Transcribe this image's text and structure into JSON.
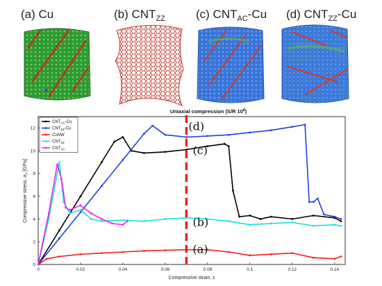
{
  "panels": [
    {
      "prefix": "(a) Cu",
      "sub": "",
      "suffix": ""
    },
    {
      "prefix": "(b) CNT",
      "sub": "ZZ",
      "suffix": ""
    },
    {
      "prefix": "(c) CNT",
      "sub": "AC",
      "suffix": "-Cu"
    },
    {
      "prefix": "(d) CNT",
      "sub": "ZZ",
      "suffix": "-Cu"
    }
  ],
  "colors": {
    "copper_green": "#3aa03a",
    "copper_red": "#cc2a2a",
    "cnt_blue": "#3a6fd8",
    "cnt_red_sheet": "#c9483e",
    "dashed_marker": "#e8231f"
  },
  "chart_data": {
    "type": "line",
    "title": "Uniaxial compression (S/R 10",
    "title_sup": "8",
    "title_end": ")",
    "xlabel": "Compressive strain, ε",
    "ylabel_main": "Compressive stress, σ",
    "ylabel_sub": "z",
    "ylabel_unit": " [GPa]",
    "xlim": [
      0,
      0.145
    ],
    "ylim": [
      0,
      13
    ],
    "x_ticks": [
      "0",
      "0.02",
      "0.04",
      "0.06",
      "0.08",
      "0.1",
      "0.12",
      "0.14"
    ],
    "x_tick_values": [
      0,
      0.02,
      0.04,
      0.06,
      0.08,
      0.1,
      0.12,
      0.14
    ],
    "y_ticks": [
      "0",
      "2",
      "4",
      "6",
      "8",
      "10",
      "12"
    ],
    "y_tick_values": [
      0,
      2,
      4,
      6,
      8,
      10,
      12
    ],
    "grid": false,
    "legend_position": "top-left",
    "dashed_marker_x": 0.07,
    "series": [
      {
        "name": "CNT_AC-Cu",
        "legend_main": "CNT",
        "legend_sub": "AC",
        "legend_end": "-Cu",
        "color": "#000000",
        "x": [
          0,
          0.01,
          0.02,
          0.03,
          0.036,
          0.04,
          0.044,
          0.05,
          0.06,
          0.07,
          0.08,
          0.088,
          0.09,
          0.092,
          0.095,
          0.1,
          0.105,
          0.11,
          0.12,
          0.13,
          0.14,
          0.143
        ],
        "y": [
          0,
          3.0,
          6.0,
          9.0,
          10.8,
          11.2,
          10.0,
          9.8,
          9.9,
          10.1,
          10.4,
          10.6,
          10.4,
          6.5,
          4.2,
          4.3,
          4.0,
          4.2,
          4.0,
          4.3,
          4.1,
          3.8
        ]
      },
      {
        "name": "CNT_ZZ-Cu",
        "legend_main": "CNT",
        "legend_sub": "ZZ",
        "legend_end": "-Cu",
        "color": "#1f3fe0",
        "x": [
          0,
          0.01,
          0.02,
          0.03,
          0.04,
          0.05,
          0.054,
          0.06,
          0.07,
          0.08,
          0.09,
          0.1,
          0.11,
          0.12,
          0.126,
          0.128,
          0.13,
          0.132,
          0.135,
          0.14,
          0.143
        ],
        "y": [
          0,
          2.3,
          4.6,
          6.9,
          9.2,
          11.5,
          12.2,
          11.4,
          11.2,
          11.3,
          11.4,
          11.6,
          11.8,
          12.1,
          12.3,
          5.5,
          5.5,
          5.8,
          4.4,
          4.2,
          4.0
        ]
      },
      {
        "name": "CuNW",
        "legend_main": "CuNW",
        "legend_sub": "",
        "legend_end": "",
        "color": "#ee1c1c",
        "x": [
          0,
          0.004,
          0.01,
          0.02,
          0.03,
          0.04,
          0.05,
          0.06,
          0.07,
          0.08,
          0.09,
          0.1,
          0.11,
          0.12,
          0.13,
          0.14,
          0.143
        ],
        "y": [
          0,
          0.5,
          0.7,
          0.9,
          1.0,
          1.1,
          1.2,
          1.25,
          1.3,
          1.3,
          1.1,
          0.8,
          0.9,
          1.0,
          0.6,
          0.5,
          0.7
        ]
      },
      {
        "name": "CNT_ZZ",
        "legend_main": "CNT",
        "legend_sub": "ZZ",
        "legend_end": "",
        "color": "#19e0e0",
        "x": [
          0,
          0.005,
          0.01,
          0.012,
          0.015,
          0.02,
          0.025,
          0.03,
          0.04,
          0.05,
          0.06,
          0.07,
          0.08,
          0.09,
          0.1,
          0.11,
          0.12,
          0.13,
          0.14,
          0.143
        ],
        "y": [
          0,
          4.0,
          9.0,
          5.5,
          4.5,
          4.8,
          4.0,
          3.8,
          3.9,
          3.8,
          4.0,
          4.1,
          4.0,
          3.8,
          3.5,
          3.6,
          3.7,
          3.4,
          3.5,
          3.4
        ]
      },
      {
        "name": "CNT_AC",
        "legend_main": "CNT",
        "legend_sub": "AC",
        "legend_end": "",
        "color": "#ee22ee",
        "x": [
          0,
          0.005,
          0.009,
          0.011,
          0.013,
          0.015,
          0.02,
          0.025,
          0.03,
          0.035,
          0.04,
          0.042
        ],
        "y": [
          0,
          4.5,
          8.8,
          7.5,
          5.0,
          4.8,
          5.2,
          4.5,
          4.0,
          3.6,
          3.5,
          3.8
        ]
      }
    ],
    "annotations": [
      {
        "text": "(d)",
        "x": 0.071,
        "y": 11.8
      },
      {
        "text": "(c)",
        "x": 0.073,
        "y": 9.7
      },
      {
        "text": "(b)",
        "x": 0.073,
        "y": 3.4
      },
      {
        "text": "(a)",
        "x": 0.073,
        "y": 1.0
      }
    ]
  }
}
